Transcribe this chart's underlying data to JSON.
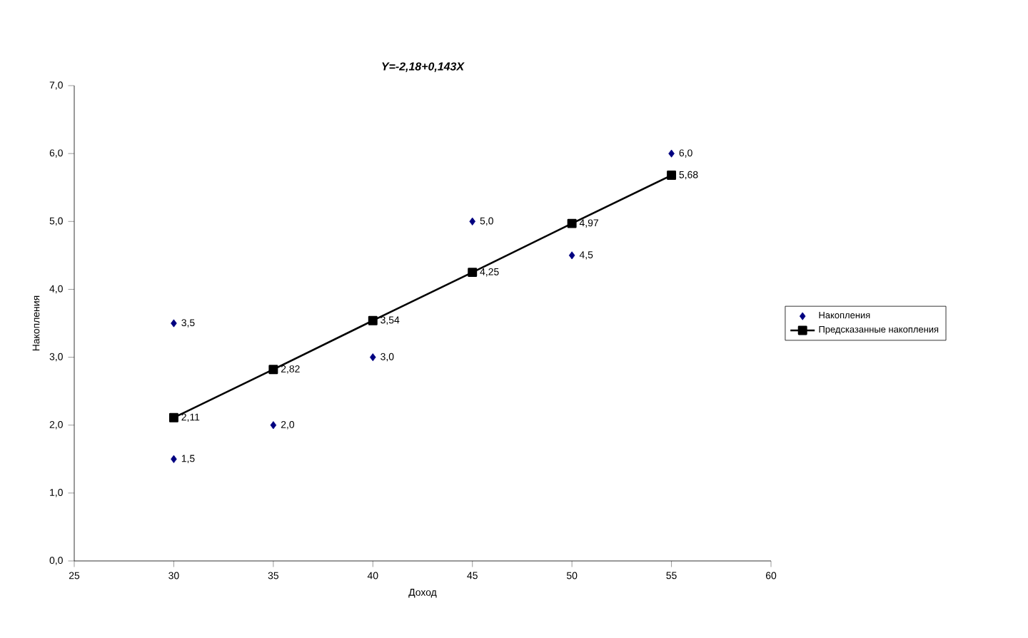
{
  "chart_data": {
    "type": "scatter",
    "title": "Y=-2,18+0,143X",
    "xlabel": "Доход",
    "ylabel": "Накопления",
    "xlim": [
      25,
      60
    ],
    "xticks": [
      25,
      30,
      35,
      40,
      45,
      50,
      55,
      60
    ],
    "ylim": [
      0,
      7
    ],
    "yticks": [
      {
        "value": 0,
        "label": "0,0"
      },
      {
        "value": 1,
        "label": "1,0"
      },
      {
        "value": 2,
        "label": "2,0"
      },
      {
        "value": 3,
        "label": "3,0"
      },
      {
        "value": 4,
        "label": "4,0"
      },
      {
        "value": 5,
        "label": "5,0"
      },
      {
        "value": 6,
        "label": "6,0"
      },
      {
        "value": 7,
        "label": "7,0"
      }
    ],
    "grid": false,
    "legend": "right",
    "series": [
      {
        "name": "Накопления",
        "marker": "diamond",
        "color": "#000080",
        "x": [
          30,
          30,
          35,
          40,
          45,
          50,
          55
        ],
        "values": [
          3.5,
          1.5,
          2.0,
          3.0,
          5.0,
          4.5,
          6.0
        ],
        "value_labels": [
          "3,5",
          "1,5",
          "2,0",
          "3,0",
          "5,0",
          "4,5",
          "6,0"
        ]
      },
      {
        "name": "Предсказанные накопления",
        "type": "line",
        "marker": "square",
        "line_style": "solid",
        "color": "#000000",
        "x": [
          30,
          35,
          40,
          45,
          50,
          55
        ],
        "values": [
          2.11,
          2.82,
          3.54,
          4.25,
          4.97,
          5.68
        ],
        "value_labels": [
          "2,11",
          "2,82",
          "3,54",
          "4,25",
          "4,97",
          "5,68"
        ]
      }
    ]
  }
}
